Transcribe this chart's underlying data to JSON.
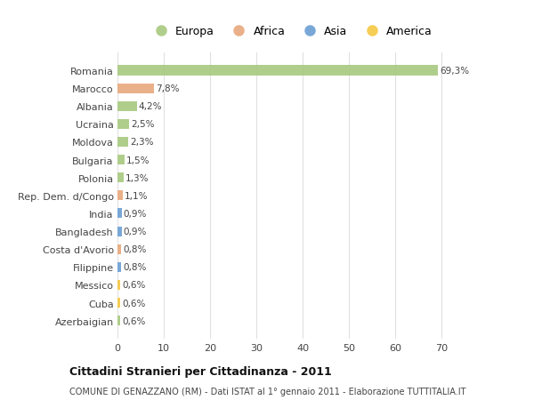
{
  "countries": [
    "Romania",
    "Marocco",
    "Albania",
    "Ucraina",
    "Moldova",
    "Bulgaria",
    "Polonia",
    "Rep. Dem. d/Congo",
    "India",
    "Bangladesh",
    "Costa d'Avorio",
    "Filippine",
    "Messico",
    "Cuba",
    "Azerbaigian"
  ],
  "values": [
    69.3,
    7.8,
    4.2,
    2.5,
    2.3,
    1.5,
    1.3,
    1.1,
    0.9,
    0.9,
    0.8,
    0.8,
    0.6,
    0.6,
    0.6
  ],
  "labels": [
    "69,3%",
    "7,8%",
    "4,2%",
    "2,5%",
    "2,3%",
    "1,5%",
    "1,3%",
    "1,1%",
    "0,9%",
    "0,9%",
    "0,8%",
    "0,8%",
    "0,6%",
    "0,6%",
    "0,6%"
  ],
  "continents": [
    "Europa",
    "Africa",
    "Europa",
    "Europa",
    "Europa",
    "Europa",
    "Europa",
    "Africa",
    "Asia",
    "Asia",
    "Africa",
    "Asia",
    "America",
    "America",
    "Europa"
  ],
  "colors": {
    "Europa": "#a8c97f",
    "Africa": "#e8a87c",
    "Asia": "#6b9fd4",
    "America": "#f5c842"
  },
  "title_bold": "Cittadini Stranieri per Cittadinanza - 2011",
  "subtitle": "COMUNE DI GENAZZANO (RM) - Dati ISTAT al 1° gennaio 2011 - Elaborazione TUTTITALIA.IT",
  "xlim": [
    0,
    75
  ],
  "xticks": [
    0,
    10,
    20,
    30,
    40,
    50,
    60,
    70
  ],
  "background_color": "#ffffff",
  "grid_color": "#e0e0e0",
  "legend_entries": [
    "Europa",
    "Africa",
    "Asia",
    "America"
  ]
}
